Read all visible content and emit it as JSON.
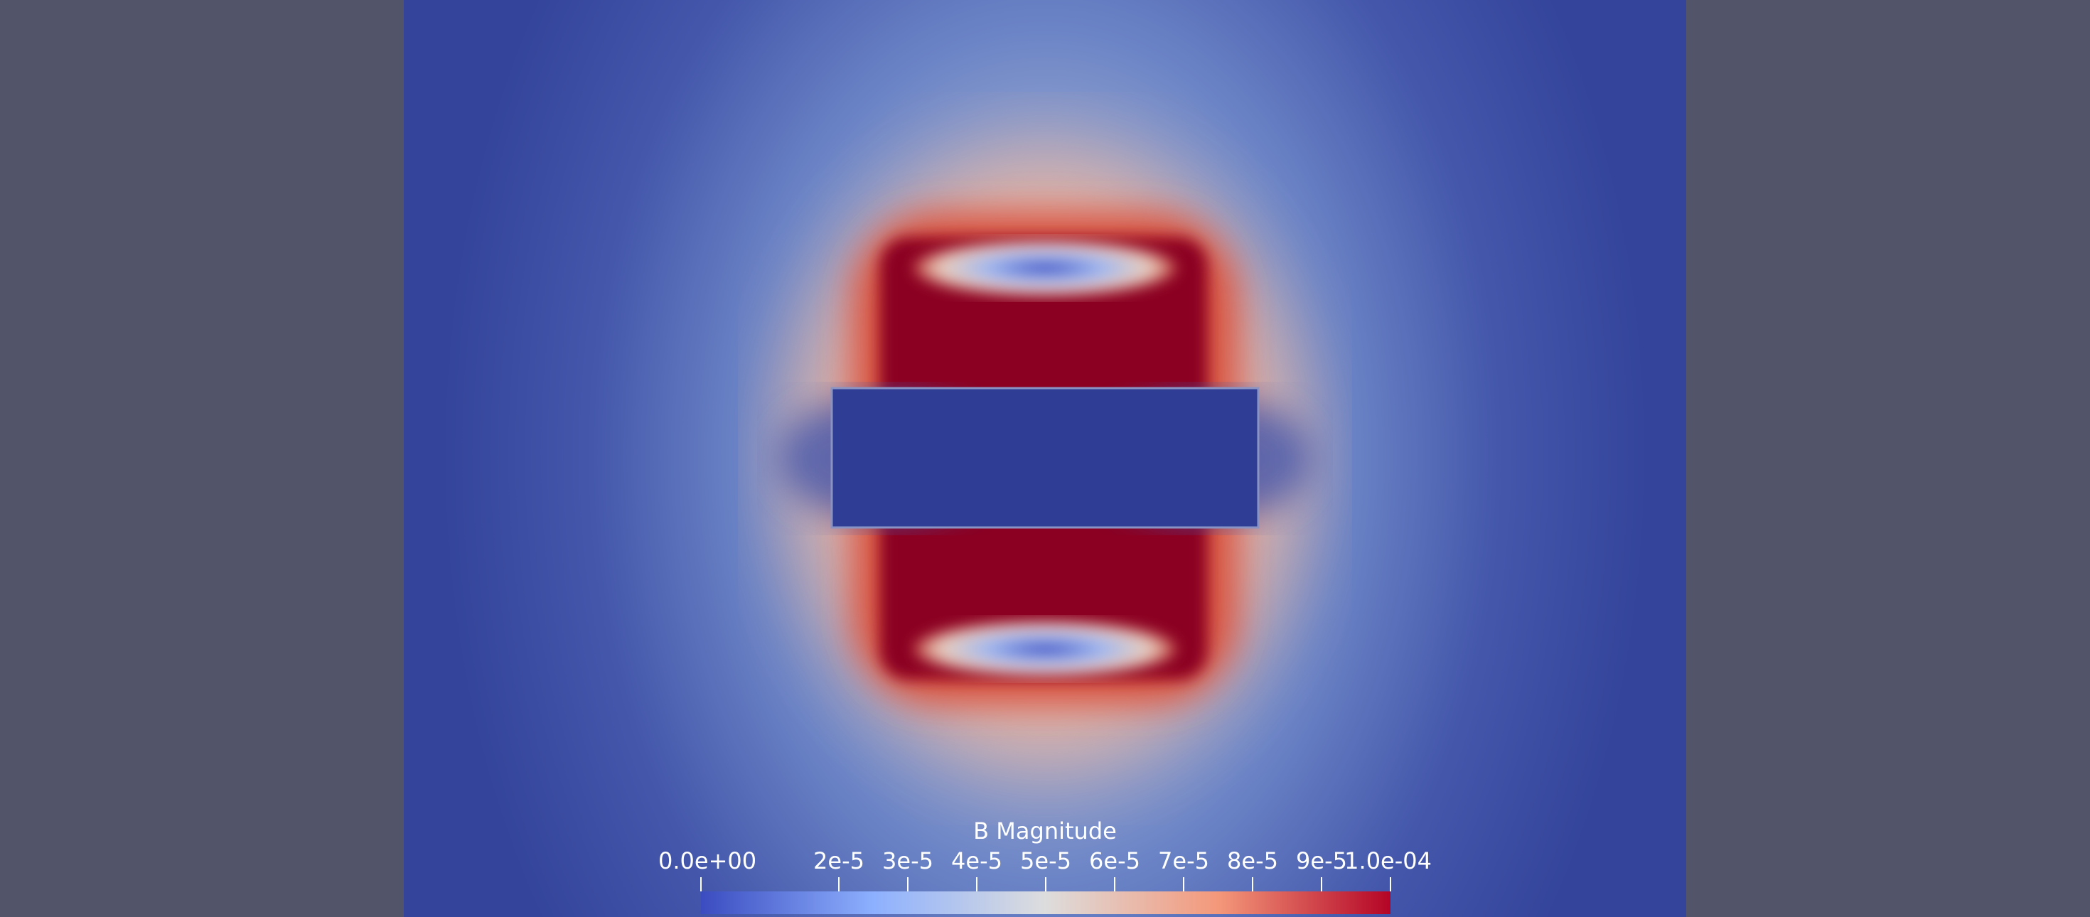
{
  "colorbar": {
    "title": "B Magnitude",
    "range": [
      0,
      0.0001
    ],
    "ticks": [
      {
        "value": 0,
        "label": "0.0e+00"
      },
      {
        "value": 2e-05,
        "label": "2e-5"
      },
      {
        "value": 3e-05,
        "label": "3e-5"
      },
      {
        "value": 4e-05,
        "label": "4e-5"
      },
      {
        "value": 5e-05,
        "label": "5e-5"
      },
      {
        "value": 6e-05,
        "label": "6e-5"
      },
      {
        "value": 7e-05,
        "label": "7e-5"
      },
      {
        "value": 8e-05,
        "label": "8e-5"
      },
      {
        "value": 9e-05,
        "label": "9e-5"
      },
      {
        "value": 0.0001,
        "label": "1.0e-04"
      }
    ]
  }
}
